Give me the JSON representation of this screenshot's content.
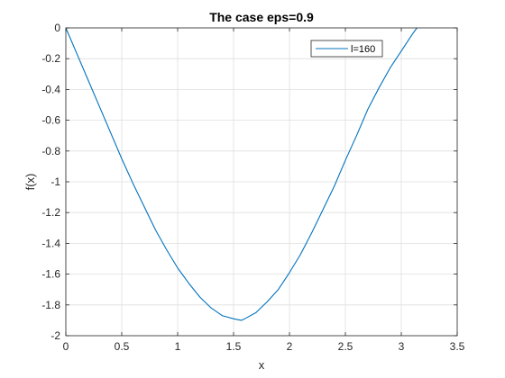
{
  "chart_data": {
    "type": "line",
    "title": "The case eps=0.9",
    "xlabel": "x",
    "ylabel": "f(x)",
    "xlim": [
      0,
      3.5
    ],
    "ylim": [
      -2,
      0
    ],
    "xticks": [
      0,
      0.5,
      1,
      1.5,
      2,
      2.5,
      3,
      3.5
    ],
    "xtick_labels": [
      "0",
      "0.5",
      "1",
      "1.5",
      "2",
      "2.5",
      "3",
      "3.5"
    ],
    "yticks": [
      0,
      -0.2,
      -0.4,
      -0.6,
      -0.8,
      -1,
      -1.2,
      -1.4,
      -1.6,
      -1.8,
      -2
    ],
    "ytick_labels": [
      "0",
      "-0.2",
      "-0.4",
      "-0.6",
      "-0.8",
      "-1",
      "-1.2",
      "-1.4",
      "-1.6",
      "-1.8",
      "-2"
    ],
    "grid": true,
    "legend_position": "top-right",
    "series": [
      {
        "name": "l=160",
        "color": "#0072BD",
        "x": [
          0,
          0.1,
          0.2,
          0.3,
          0.4,
          0.5,
          0.6,
          0.7,
          0.8,
          0.9,
          1.0,
          1.1,
          1.2,
          1.3,
          1.4,
          1.5,
          1.57,
          1.6,
          1.7,
          1.8,
          1.9,
          2.0,
          2.1,
          2.2,
          2.3,
          2.4,
          2.5,
          2.6,
          2.7,
          2.8,
          2.9,
          3.0,
          3.1,
          3.14
        ],
        "y": [
          0,
          -0.17,
          -0.34,
          -0.51,
          -0.68,
          -0.85,
          -1.01,
          -1.16,
          -1.31,
          -1.44,
          -1.56,
          -1.66,
          -1.75,
          -1.82,
          -1.87,
          -1.89,
          -1.9,
          -1.89,
          -1.85,
          -1.78,
          -1.7,
          -1.59,
          -1.47,
          -1.33,
          -1.18,
          -1.03,
          -0.86,
          -0.7,
          -0.53,
          -0.39,
          -0.26,
          -0.15,
          -0.04,
          0
        ]
      }
    ]
  }
}
